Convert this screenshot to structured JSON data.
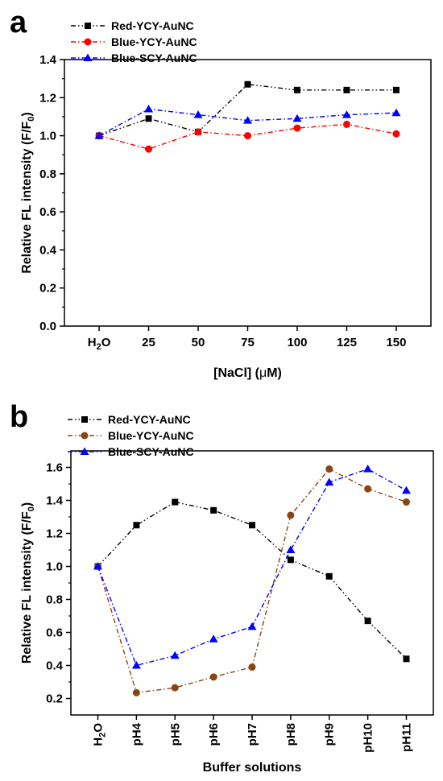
{
  "chart_data": [
    {
      "type": "line",
      "panel": "a",
      "categories": [
        "H2O",
        "25",
        "50",
        "75",
        "100",
        "125",
        "150"
      ],
      "xlabel_prefix": "[NaCl] (",
      "xlabel_mu": "μ",
      "xlabel_suffix": "M)",
      "ylabel_main": "Relative FL intensity (F/F",
      "ylabel_sub": "0",
      "ylabel_close": ")",
      "ylim": [
        0,
        1.4
      ],
      "yticks": [
        0.0,
        0.2,
        0.4,
        0.6,
        0.8,
        1.0,
        1.2,
        1.4
      ],
      "ytick_labels": [
        "0.0",
        "0.2",
        "0.4",
        "0.6",
        "0.8",
        "1.0",
        "1.2",
        "1.4"
      ],
      "legend_position": "top-left",
      "grid": false,
      "series": [
        {
          "name": "Red-YCY-AuNC",
          "color": "#000000",
          "marker": "square",
          "dash": "dash-dot-dot",
          "values": [
            1.0,
            1.09,
            1.02,
            1.27,
            1.24,
            1.24,
            1.24
          ]
        },
        {
          "name": "Blue-YCY-AuNC",
          "color": "#ff0000",
          "marker": "circle",
          "dash": "dash-dot",
          "values": [
            1.0,
            0.93,
            1.02,
            1.0,
            1.04,
            1.06,
            1.01
          ]
        },
        {
          "name": "Blue-SCY-AuNC",
          "color": "#0000ff",
          "marker": "triangle",
          "dash": "dash-dot",
          "values": [
            1.0,
            1.14,
            1.11,
            1.08,
            1.09,
            1.11,
            1.12
          ]
        }
      ]
    },
    {
      "type": "line",
      "panel": "b",
      "categories": [
        "H2O",
        "pH4",
        "pH5",
        "pH6",
        "pH7",
        "pH8",
        "pH9",
        "pH10",
        "pH11"
      ],
      "xlabel": "Buffer solutions",
      "ylabel_main": "Relative FL intensity (F/F",
      "ylabel_sub": "0",
      "ylabel_close": ")",
      "ylim": [
        0.1,
        1.7
      ],
      "yticks": [
        0.2,
        0.4,
        0.6,
        0.8,
        1.0,
        1.2,
        1.4,
        1.6
      ],
      "ytick_labels": [
        "0.2",
        "0.4",
        "0.6",
        "0.8",
        "1.0",
        "1.2",
        "1.4",
        "1.6"
      ],
      "legend_position": "top-left",
      "grid": false,
      "series": [
        {
          "name": "Red-YCY-AuNC",
          "color": "#000000",
          "marker": "square",
          "dash": "dash-dot-dot",
          "values": [
            1.0,
            1.25,
            1.39,
            1.34,
            1.25,
            1.04,
            0.94,
            0.67,
            0.44
          ]
        },
        {
          "name": "Blue-YCY-AuNC",
          "color": "#8b4513",
          "marker": "circle",
          "dash": "dash-dot",
          "values": [
            1.0,
            0.235,
            0.265,
            0.33,
            0.39,
            1.31,
            1.59,
            1.47,
            1.39
          ]
        },
        {
          "name": "Blue-SCY-AuNC",
          "color": "#0000ff",
          "marker": "triangle",
          "dash": "dash-dot",
          "values": [
            1.0,
            0.4,
            0.46,
            0.56,
            0.635,
            1.1,
            1.51,
            1.59,
            1.46
          ]
        }
      ]
    }
  ]
}
